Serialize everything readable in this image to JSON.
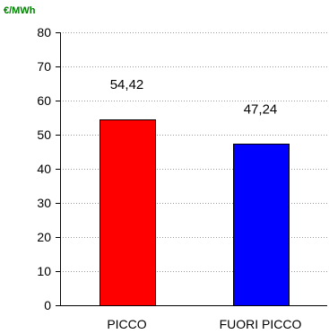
{
  "chart_data": {
    "type": "bar",
    "unit_label": "€/MWh",
    "categories": [
      "PICCO",
      "FUORI PICCO"
    ],
    "values": [
      54.42,
      47.24
    ],
    "data_labels": [
      "54,42",
      "47,24"
    ],
    "bar_colors": [
      "#ff0000",
      "#0000ff"
    ],
    "unit_color": "#008000",
    "ylim": [
      0,
      80
    ],
    "yticks": [
      0,
      10,
      20,
      30,
      40,
      50,
      60,
      70,
      80
    ],
    "ytick_labels": [
      "0",
      "10",
      "20",
      "30",
      "40",
      "50",
      "60",
      "70",
      "80"
    ],
    "grid": true,
    "legend": "none"
  }
}
